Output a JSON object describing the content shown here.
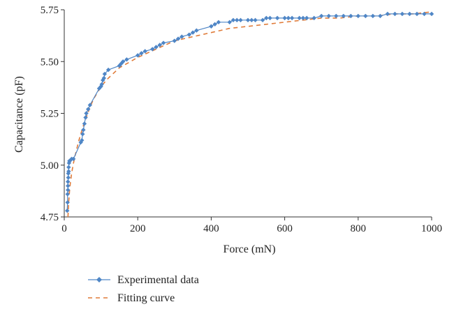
{
  "chart_data": {
    "type": "scatter",
    "title": "",
    "xlabel": "Force (mN)",
    "ylabel": "Capacitance (pF)",
    "xlim": [
      0,
      1000
    ],
    "ylim": [
      4.75,
      5.75
    ],
    "xticks": [
      0,
      200,
      400,
      600,
      800,
      1000
    ],
    "yticks": [
      4.75,
      5.0,
      5.25,
      5.5,
      5.75
    ],
    "grid": false,
    "legend_position": "bottom",
    "series": [
      {
        "name": "Experimental data",
        "style": "line-with-diamond-markers",
        "color": "#4f86c6",
        "x": [
          8,
          9,
          9,
          10,
          10,
          10,
          11,
          11,
          12,
          12,
          13,
          14,
          15,
          20,
          25,
          45,
          48,
          50,
          52,
          55,
          58,
          60,
          65,
          70,
          95,
          100,
          102,
          105,
          108,
          110,
          120,
          150,
          155,
          160,
          170,
          200,
          210,
          220,
          240,
          250,
          260,
          270,
          300,
          310,
          320,
          340,
          350,
          360,
          400,
          410,
          420,
          450,
          460,
          470,
          480,
          500,
          510,
          520,
          540,
          550,
          560,
          580,
          600,
          610,
          620,
          640,
          650,
          660,
          680,
          700,
          720,
          740,
          760,
          780,
          800,
          820,
          840,
          860,
          880,
          900,
          920,
          940,
          960,
          980,
          1000
        ],
        "y": [
          4.78,
          4.82,
          4.86,
          4.88,
          4.9,
          4.92,
          4.94,
          4.96,
          4.97,
          4.99,
          5.01,
          5.02,
          5.02,
          5.03,
          5.03,
          5.11,
          5.12,
          5.15,
          5.17,
          5.2,
          5.23,
          5.25,
          5.27,
          5.29,
          5.37,
          5.38,
          5.39,
          5.41,
          5.42,
          5.44,
          5.46,
          5.48,
          5.49,
          5.5,
          5.51,
          5.53,
          5.54,
          5.55,
          5.56,
          5.57,
          5.58,
          5.59,
          5.6,
          5.61,
          5.62,
          5.63,
          5.64,
          5.65,
          5.67,
          5.68,
          5.69,
          5.69,
          5.7,
          5.7,
          5.7,
          5.7,
          5.7,
          5.7,
          5.7,
          5.71,
          5.71,
          5.71,
          5.71,
          5.71,
          5.71,
          5.71,
          5.71,
          5.71,
          5.71,
          5.72,
          5.72,
          5.72,
          5.72,
          5.72,
          5.72,
          5.72,
          5.72,
          5.72,
          5.73,
          5.73,
          5.73,
          5.73,
          5.73,
          5.73,
          5.73
        ]
      },
      {
        "name": "Fitting curve",
        "style": "dashed-line",
        "color": "#e07b39",
        "x": [
          10,
          12,
          15,
          20,
          25,
          30,
          40,
          50,
          60,
          70,
          80,
          100,
          120,
          150,
          180,
          200,
          250,
          300,
          350,
          400,
          450,
          500,
          550,
          600,
          650,
          700,
          750,
          800,
          850,
          900,
          950,
          1000
        ],
        "y": [
          4.75,
          4.82,
          4.89,
          4.96,
          5.01,
          5.05,
          5.12,
          5.18,
          5.23,
          5.28,
          5.32,
          5.38,
          5.42,
          5.47,
          5.5,
          5.52,
          5.56,
          5.6,
          5.62,
          5.64,
          5.66,
          5.67,
          5.68,
          5.69,
          5.7,
          5.71,
          5.71,
          5.72,
          5.72,
          5.73,
          5.73,
          5.74
        ]
      }
    ]
  }
}
